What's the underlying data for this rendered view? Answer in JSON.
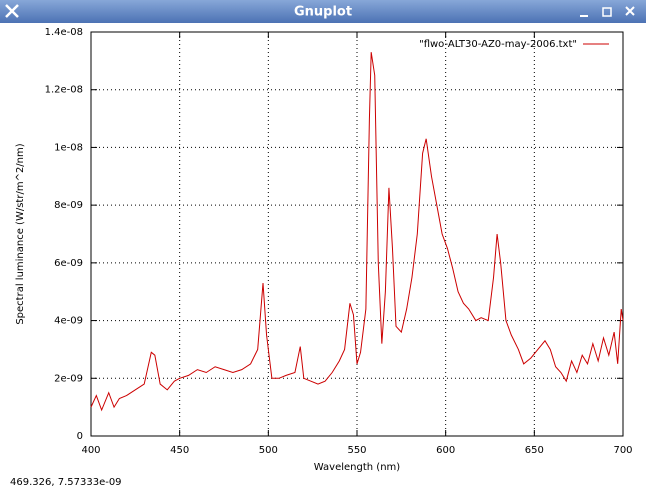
{
  "window": {
    "title": "Gnuplot",
    "status": "469.326,  7.57333e-09"
  },
  "chart_data": {
    "type": "line",
    "xlabel": "Wavelength (nm)",
    "ylabel": "Spectral luminance (W/str/m^2/nm)",
    "x": [
      400,
      403,
      406,
      410,
      413,
      416,
      420,
      425,
      430,
      434,
      436,
      439,
      443,
      447,
      450,
      455,
      460,
      465,
      470,
      475,
      480,
      485,
      490,
      494,
      497,
      499,
      502,
      506,
      510,
      515,
      518,
      520,
      524,
      528,
      532,
      536,
      540,
      543,
      546,
      548,
      550,
      552,
      555,
      557,
      558,
      560,
      562,
      564,
      566,
      568,
      570,
      572,
      575,
      578,
      581,
      584,
      587,
      589,
      592,
      595,
      598,
      601,
      604,
      607,
      610,
      613,
      617,
      620,
      624,
      627,
      629,
      631,
      634,
      637,
      641,
      644,
      648,
      652,
      656,
      659,
      662,
      665,
      668,
      671,
      674,
      677,
      680,
      683,
      686,
      689,
      692,
      695,
      697,
      699,
      700
    ],
    "series": [
      {
        "name": "\"flwo-ALT30-AZ0-may-2006.txt\"",
        "color": "#cc0000",
        "values": [
          1e-09,
          1.4e-09,
          9e-10,
          1.5e-09,
          1e-09,
          1.3e-09,
          1.4e-09,
          1.6e-09,
          1.8e-09,
          2.9e-09,
          2.8e-09,
          1.8e-09,
          1.6e-09,
          1.9e-09,
          2e-09,
          2.1e-09,
          2.3e-09,
          2.2e-09,
          2.4e-09,
          2.3e-09,
          2.2e-09,
          2.3e-09,
          2.5e-09,
          3e-09,
          5.3e-09,
          3.5e-09,
          2e-09,
          2e-09,
          2.1e-09,
          2.2e-09,
          3.1e-09,
          2e-09,
          1.9e-09,
          1.8e-09,
          1.9e-09,
          2.2e-09,
          2.6e-09,
          3e-09,
          4.6e-09,
          4.2e-09,
          2.5e-09,
          2.9e-09,
          4.4e-09,
          1.1e-08,
          1.33e-08,
          1.25e-08,
          6e-09,
          3.2e-09,
          5e-09,
          8.6e-09,
          6.5e-09,
          3.8e-09,
          3.6e-09,
          4.4e-09,
          5.5e-09,
          7e-09,
          9.8e-09,
          1.03e-08,
          9e-09,
          8e-09,
          7e-09,
          6.5e-09,
          5.8e-09,
          5e-09,
          4.6e-09,
          4.4e-09,
          4e-09,
          4.1e-09,
          4e-09,
          5.5e-09,
          7e-09,
          6e-09,
          4e-09,
          3.5e-09,
          3e-09,
          2.5e-09,
          2.7e-09,
          3e-09,
          3.3e-09,
          3e-09,
          2.4e-09,
          2.2e-09,
          1.9e-09,
          2.6e-09,
          2.2e-09,
          2.8e-09,
          2.5e-09,
          3.2e-09,
          2.6e-09,
          3.4e-09,
          2.8e-09,
          3.6e-09,
          2.5e-09,
          4.4e-09,
          4e-09
        ]
      }
    ],
    "xlim": [
      400,
      700
    ],
    "xticks": [
      400,
      450,
      500,
      550,
      600,
      650,
      700
    ],
    "ylim": [
      0,
      1.4e-08
    ],
    "yticks": [
      0,
      {
        "value": 2e-09,
        "label": "2e-09"
      },
      {
        "value": 4e-09,
        "label": "4e-09"
      },
      {
        "value": 6e-09,
        "label": "6e-09"
      },
      {
        "value": 8e-09,
        "label": "8e-09"
      },
      {
        "value": 1e-08,
        "label": "1e-08"
      },
      {
        "value": 1.2e-08,
        "label": "1.2e-08"
      },
      {
        "value": 1.4e-08,
        "label": "1.4e-08"
      }
    ],
    "grid": true,
    "legend": "top-right"
  }
}
